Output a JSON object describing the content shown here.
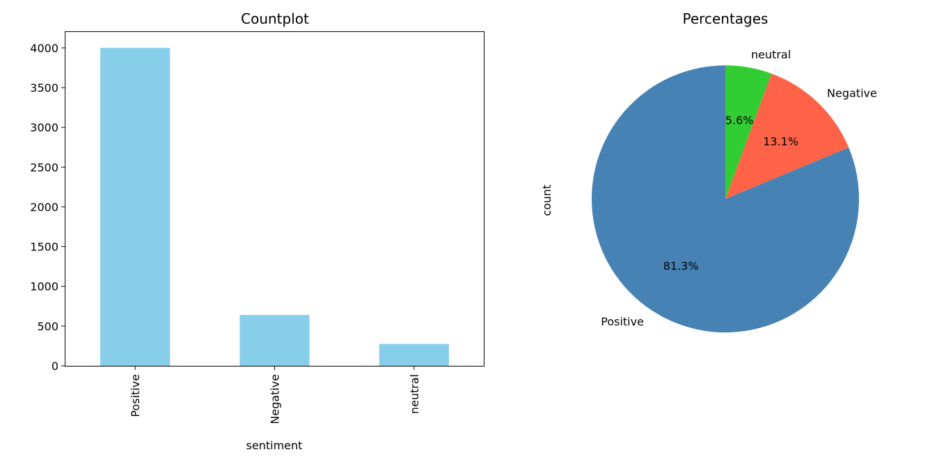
{
  "chart_data": [
    {
      "type": "bar",
      "title": "Countplot",
      "xlabel": "sentiment",
      "ylabel": "",
      "categories": [
        "Positive",
        "Negative",
        "neutral"
      ],
      "values": [
        4000,
        640,
        275
      ],
      "ylim": [
        0,
        4200
      ],
      "yticks": [
        0,
        500,
        1000,
        1500,
        2000,
        2500,
        3000,
        3500,
        4000
      ],
      "ytick_labels": [
        "0",
        "500",
        "1000",
        "1500",
        "2000",
        "2500",
        "3000",
        "3500",
        "4000"
      ],
      "bar_color": "#87ceeb",
      "grid": false
    },
    {
      "type": "pie",
      "title": "Percentages",
      "ylabel": "count",
      "labels": [
        "Positive",
        "Negative",
        "neutral"
      ],
      "percentages": [
        81.3,
        13.1,
        5.6
      ],
      "pct_labels": [
        "81.3%",
        "13.1%",
        "5.6%"
      ],
      "colors": [
        "#4682b4",
        "#ff6347",
        "#32cd32"
      ],
      "start_angle": 90,
      "direction": "counterclockwise"
    }
  ]
}
